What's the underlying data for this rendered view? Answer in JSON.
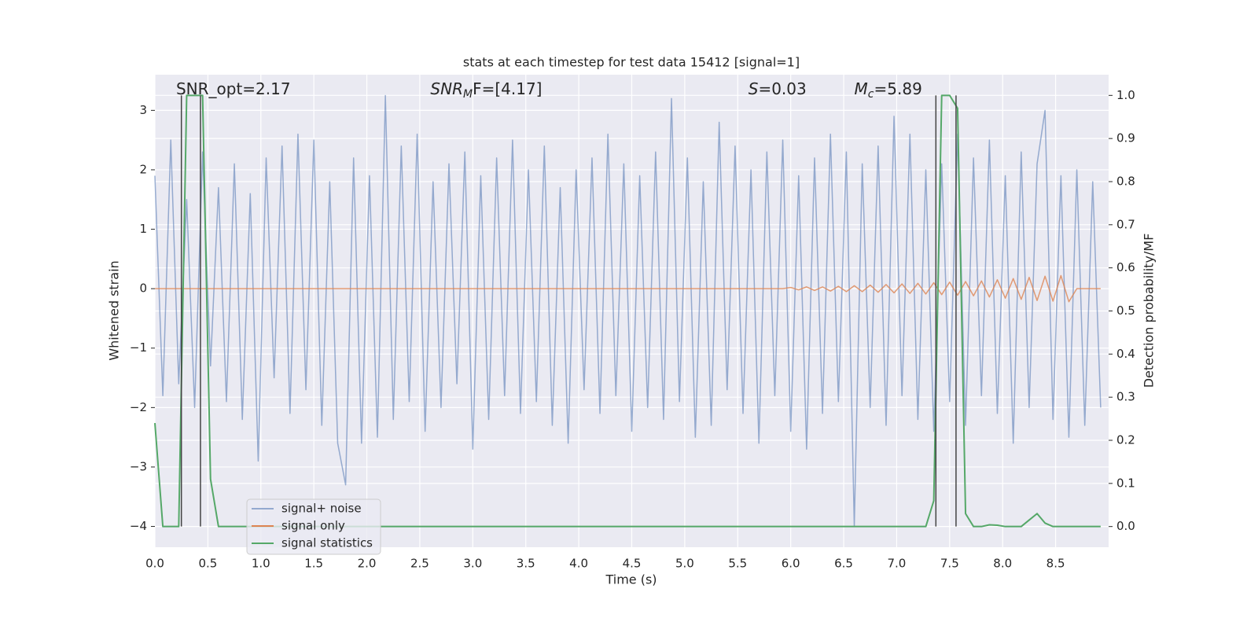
{
  "chart_data": {
    "type": "line",
    "title": "stats at each timestep for test data 15412 [signal=1]",
    "xlabel": "Time (s)",
    "ylabel": "Whitened strain",
    "y2label": "Detection probability/MF",
    "xlim": [
      0,
      9.0
    ],
    "ylim": [
      -4.35,
      3.6
    ],
    "y2lim": [
      -0.048,
      1.048
    ],
    "xticks": [
      {
        "value": 0,
        "label": "0.0"
      },
      0.5,
      {
        "value": 1,
        "label": "1.0"
      },
      1.5,
      {
        "value": 2,
        "label": "2.0"
      },
      2.5,
      {
        "value": 3,
        "label": "3.0"
      },
      3.5,
      {
        "value": 4,
        "label": "4.0"
      },
      4.5,
      {
        "value": 5,
        "label": "5.0"
      },
      5.5,
      {
        "value": 6,
        "label": "6.0"
      },
      6.5,
      {
        "value": 7,
        "label": "7.0"
      },
      7.5,
      {
        "value": 8,
        "label": "8.0"
      },
      8.5
    ],
    "yticks": [
      {
        "value": -4,
        "label": "−4"
      },
      {
        "value": -3,
        "label": "−3"
      },
      {
        "value": -2,
        "label": "−2"
      },
      {
        "value": -1,
        "label": "−1"
      },
      0,
      1,
      2,
      3
    ],
    "y2ticks": [
      {
        "value": 0,
        "label": "0.0"
      },
      0.1,
      0.2,
      0.3,
      0.4,
      0.5,
      0.6,
      0.7,
      0.8,
      0.9,
      {
        "value": 1,
        "label": "1.0"
      }
    ],
    "grid": true,
    "legend": "lower left",
    "x": [
      0,
      0.075,
      0.15,
      0.225,
      0.3,
      0.375,
      0.45,
      0.525,
      0.6,
      0.675,
      0.75,
      0.825,
      0.9,
      0.975,
      1.05,
      1.125,
      1.2,
      1.275,
      1.35,
      1.425,
      1.5,
      1.575,
      1.65,
      1.725,
      1.8,
      1.875,
      1.95,
      2.025,
      2.1,
      2.175,
      2.25,
      2.325,
      2.4,
      2.475,
      2.55,
      2.625,
      2.7,
      2.775,
      2.85,
      2.925,
      3,
      3.075,
      3.15,
      3.225,
      3.3,
      3.375,
      3.45,
      3.525,
      3.6,
      3.675,
      3.75,
      3.825,
      3.9,
      3.975,
      4.05,
      4.125,
      4.2,
      4.275,
      4.35,
      4.425,
      4.5,
      4.575,
      4.65,
      4.725,
      4.8,
      4.875,
      4.95,
      5.025,
      5.1,
      5.175,
      5.25,
      5.325,
      5.4,
      5.475,
      5.55,
      5.625,
      5.7,
      5.775,
      5.85,
      5.925,
      6,
      6.075,
      6.15,
      6.225,
      6.3,
      6.375,
      6.45,
      6.525,
      6.6,
      6.675,
      6.75,
      6.825,
      6.9,
      6.975,
      7.05,
      7.125,
      7.2,
      7.275,
      7.35,
      7.425,
      7.5,
      7.575,
      7.65,
      7.725,
      7.8,
      7.875,
      7.95,
      8.025,
      8.1,
      8.175,
      8.25,
      8.325,
      8.4,
      8.475,
      8.55,
      8.625,
      8.7,
      8.775,
      8.85,
      8.925
    ],
    "series": [
      {
        "name": "signal+ noise",
        "color": "#4c72b0",
        "values": [
          1.9,
          -1.8,
          2.5,
          -1.6,
          1.5,
          -2.0,
          2.3,
          -1.3,
          1.7,
          -1.9,
          2.1,
          -2.2,
          1.6,
          -2.9,
          2.2,
          -1.5,
          2.4,
          -2.1,
          2.6,
          -1.7,
          2.5,
          -2.3,
          1.8,
          -2.6,
          -3.3,
          2.2,
          -2.6,
          1.9,
          -2.5,
          3.25,
          -2.2,
          2.4,
          -1.9,
          2.6,
          -2.4,
          1.8,
          -2.0,
          2.1,
          -1.6,
          2.3,
          -2.7,
          1.9,
          -2.2,
          2.2,
          -1.8,
          2.5,
          -2.1,
          2.0,
          -1.9,
          2.4,
          -2.3,
          1.7,
          -2.6,
          2.0,
          -1.7,
          2.2,
          -2.1,
          2.6,
          -1.8,
          2.1,
          -2.4,
          1.9,
          -2.0,
          2.3,
          -2.2,
          3.2,
          -1.9,
          2.2,
          -2.5,
          1.8,
          -2.3,
          2.8,
          -1.7,
          2.4,
          -2.1,
          2.0,
          -2.6,
          2.3,
          -1.8,
          2.5,
          -2.4,
          1.9,
          -2.7,
          2.2,
          -2.1,
          2.6,
          -1.9,
          2.3,
          -4.0,
          2.1,
          -2.0,
          2.4,
          -2.3,
          2.9,
          -1.8,
          2.6,
          -2.2,
          2.0,
          -2.4,
          2.1,
          -1.9,
          2.6,
          -2.3,
          2.2,
          -1.8,
          2.5,
          -2.1,
          1.9,
          -2.6,
          2.3,
          -2.0,
          2.1,
          3.0,
          -2.2,
          1.9,
          -2.5,
          2.0,
          -2.3,
          1.8,
          -2.0
        ]
      },
      {
        "name": "signal only",
        "color": "#dd8452",
        "values": [
          0,
          0,
          0,
          0,
          0,
          0,
          0,
          0,
          0,
          0,
          0,
          0,
          0,
          0,
          0,
          0,
          0,
          0,
          0,
          0,
          0,
          0,
          0,
          0,
          0,
          0,
          0,
          0,
          0,
          0,
          0,
          0,
          0,
          0,
          0,
          0,
          0,
          0,
          0,
          0,
          0,
          0,
          0,
          0,
          0,
          0,
          0,
          0,
          0,
          0,
          0,
          0,
          0,
          0,
          0,
          0,
          0,
          0,
          0,
          0,
          0,
          0,
          0,
          0,
          0,
          0,
          0,
          0,
          0,
          0,
          0,
          0,
          0,
          0,
          0,
          0,
          0,
          0,
          0,
          0,
          0.02,
          -0.02,
          0.03,
          -0.03,
          0.03,
          -0.04,
          0.04,
          -0.05,
          0.05,
          -0.05,
          0.06,
          -0.06,
          0.07,
          -0.07,
          0.08,
          -0.08,
          0.09,
          -0.09,
          0.1,
          -0.1,
          0.11,
          -0.11,
          0.12,
          -0.12,
          0.13,
          -0.14,
          0.15,
          -0.16,
          0.17,
          -0.18,
          0.19,
          -0.2,
          0.21,
          -0.21,
          0.22,
          -0.22,
          0,
          0,
          0,
          0
        ]
      },
      {
        "name": "signal statistics",
        "color": "#55a868",
        "axis": "y2",
        "values": [
          0.24,
          0,
          0,
          0,
          1.0,
          1.0,
          1.0,
          0.11,
          0,
          0,
          0,
          0,
          0,
          0,
          0,
          0,
          0,
          0,
          0,
          0,
          0,
          0,
          0,
          0,
          0,
          0,
          0,
          0,
          0,
          0,
          0,
          0,
          0,
          0,
          0,
          0,
          0,
          0,
          0,
          0,
          0,
          0,
          0,
          0,
          0,
          0,
          0,
          0,
          0,
          0,
          0,
          0,
          0,
          0,
          0,
          0,
          0,
          0,
          0,
          0,
          0,
          0,
          0,
          0,
          0,
          0,
          0,
          0,
          0,
          0,
          0,
          0,
          0,
          0,
          0,
          0,
          0,
          0,
          0,
          0,
          0,
          0,
          0,
          0,
          0,
          0,
          0,
          0,
          0,
          0,
          0,
          0,
          0,
          0,
          0,
          0,
          0,
          0,
          0.06,
          1.0,
          1.0,
          0.97,
          0.03,
          0,
          0,
          0.004,
          0.003,
          0,
          0,
          0,
          0.015,
          0.03,
          0.008,
          0,
          0,
          0,
          0,
          0,
          0,
          0
        ]
      }
    ],
    "vlines": {
      "x": [
        0.25,
        0.43,
        7.37,
        7.56
      ],
      "ymin": 0,
      "ymax": 1,
      "color": "#444444"
    },
    "annotations": [
      {
        "main": "SNR_opt=2.17",
        "x": 0.2
      },
      {
        "main": "SNR",
        "sub": "M",
        "tail": "F=[4.17]",
        "x": 2.6,
        "italic": true
      },
      {
        "main": "S",
        "tail": "=0.03",
        "x": 5.6,
        "italic": true
      },
      {
        "main": "M",
        "sub": "c",
        "tail": "=5.89",
        "x": 6.6,
        "italic": true
      }
    ]
  }
}
